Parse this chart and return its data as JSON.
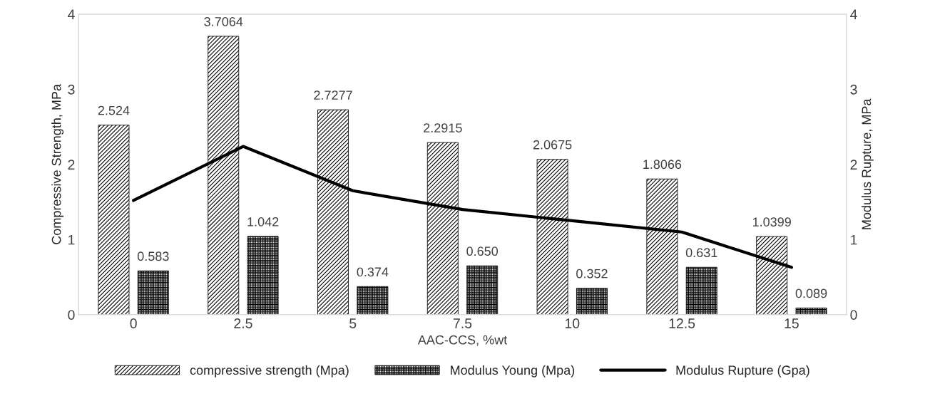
{
  "chart_data": {
    "type": "bar",
    "xlabel": "AAC-CCS, %wt",
    "ylabel": "Compressive Strength, MPa",
    "y2label": "Modulus Rupture, MPa",
    "categories": [
      "0",
      "2.5",
      "5",
      "7.5",
      "10",
      "12.5",
      "15"
    ],
    "series": [
      {
        "name": "compressive strength (Mpa)",
        "color": "#000000",
        "values": [
          2.524,
          3.7064,
          2.7277,
          2.2915,
          2.0675,
          1.8066,
          1.0399
        ],
        "value_labels": [
          "2.524",
          "3.7064",
          "2.7277",
          "2.2915",
          "2.0675",
          "1.8066",
          "1.0399"
        ]
      },
      {
        "name": "Modulus Young (Mpa)",
        "color": "#000000",
        "values": [
          0.583,
          1.042,
          0.374,
          0.65,
          0.352,
          0.631,
          0.089
        ],
        "value_labels": [
          "0.583",
          "1.042",
          "0.374",
          "0.650",
          "0.352",
          "0.631",
          "0.089"
        ]
      },
      {
        "name": "Modulus Rupture (Gpa)",
        "type": "line",
        "axis": "y2",
        "color": "#000000",
        "values": [
          1.52,
          2.24,
          1.65,
          1.4,
          1.25,
          1.1,
          0.63
        ]
      }
    ],
    "ylim": [
      0,
      4
    ],
    "yticks": [
      0,
      1,
      2,
      3,
      4
    ],
    "y2lim": [
      0,
      4
    ],
    "y2ticks": [
      0,
      1,
      2,
      3,
      4
    ],
    "grid": false,
    "legend": "bottom",
    "marker": "none"
  }
}
